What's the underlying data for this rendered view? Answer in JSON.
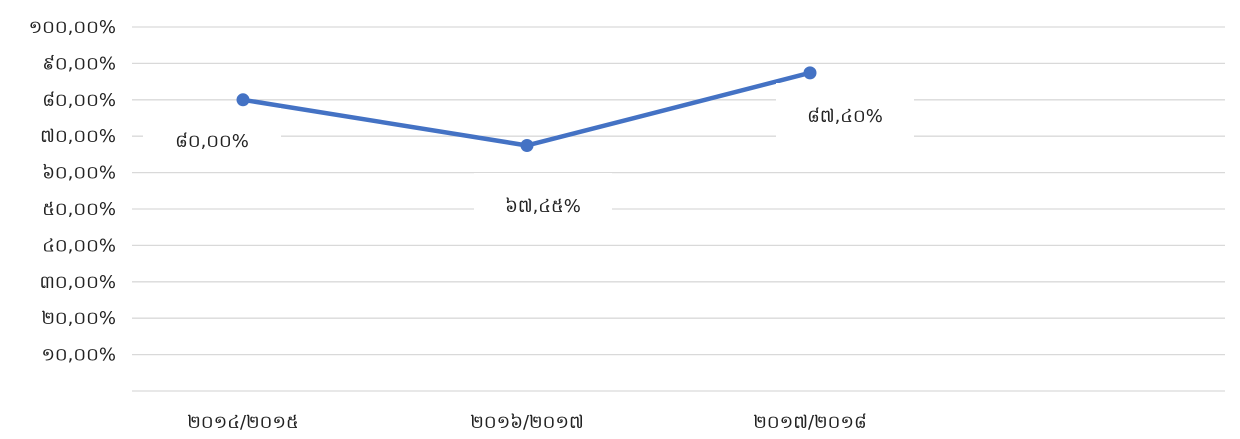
{
  "chart_data": {
    "type": "line",
    "title": "",
    "xlabel": "",
    "ylabel": "",
    "categories": [
      "២០១៤/២០១៥",
      "២០១៦/២០១៧",
      "២០១៧/២០១៨"
    ],
    "series": [
      {
        "values": [
          80.0,
          67.45,
          87.4
        ],
        "data_labels": [
          "៨០,០០%",
          "៦៧,៤៥%",
          "៨៧,៤០%"
        ],
        "color": "#4472c4"
      }
    ],
    "ylim": [
      0,
      100
    ],
    "y_ticks": [
      {
        "value": 100,
        "label": "១០០,០០%"
      },
      {
        "value": 90,
        "label": "៩០,០០%"
      },
      {
        "value": 80,
        "label": "៨០,០០%"
      },
      {
        "value": 70,
        "label": "៧០,០០%"
      },
      {
        "value": 60,
        "label": "៦០,០០%"
      },
      {
        "value": 50,
        "label": "៥០,០០%"
      },
      {
        "value": 40,
        "label": "៤០,០០%"
      },
      {
        "value": 30,
        "label": "៣០,០០%"
      },
      {
        "value": 20,
        "label": "២០,០០%"
      },
      {
        "value": 10,
        "label": "១០,០០%"
      }
    ],
    "grid": true,
    "legend": "none"
  }
}
